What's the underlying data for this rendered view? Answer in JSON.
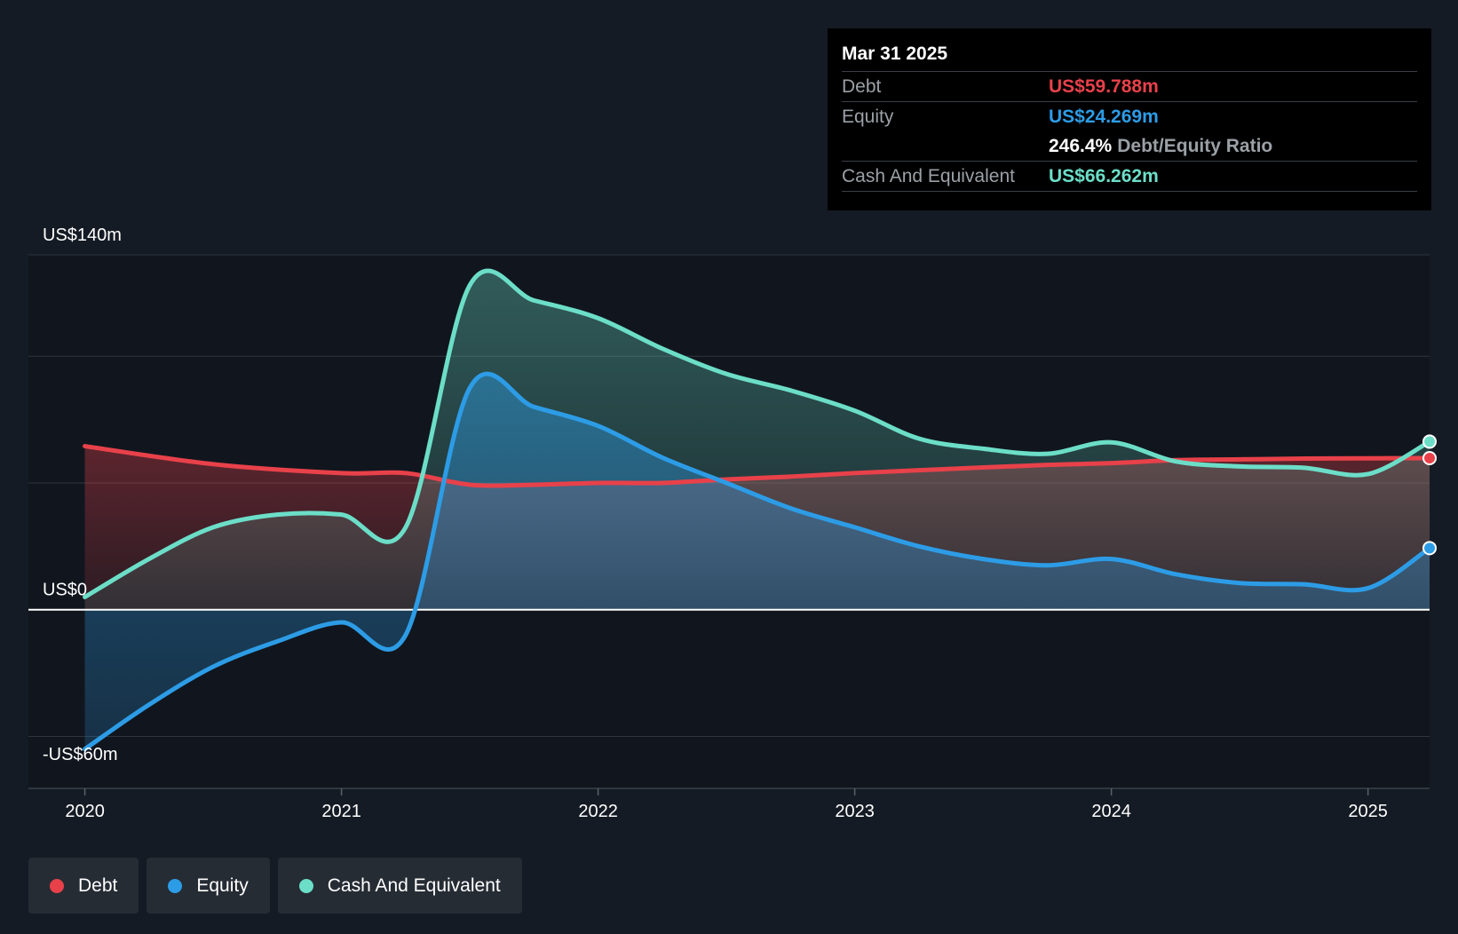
{
  "chart_data": {
    "type": "area",
    "y_axis": {
      "top_label": "US$140m",
      "zero_label": "US$0",
      "bottom_label": "-US$60m",
      "ylim": [
        -60,
        140
      ]
    },
    "x_ticks": [
      "2020",
      "2021",
      "2022",
      "2023",
      "2024",
      "2025"
    ],
    "xlim": [
      2019.78,
      2025.24
    ],
    "series": [
      {
        "name": "Debt",
        "color": "#e8414a",
        "points": [
          [
            2020.0,
            64.5
          ],
          [
            2020.5,
            57.4
          ],
          [
            2021.0,
            53.9
          ],
          [
            2021.25,
            53.9
          ],
          [
            2021.5,
            49.3
          ],
          [
            2021.75,
            49.3
          ],
          [
            2022.0,
            50.0
          ],
          [
            2022.25,
            50.0
          ],
          [
            2022.5,
            51.4
          ],
          [
            2022.75,
            52.5
          ],
          [
            2023.0,
            53.9
          ],
          [
            2023.25,
            55.0
          ],
          [
            2023.5,
            56.1
          ],
          [
            2023.75,
            57.1
          ],
          [
            2024.0,
            57.8
          ],
          [
            2024.25,
            59.0
          ],
          [
            2024.5,
            59.3
          ],
          [
            2024.75,
            59.6
          ],
          [
            2025.0,
            59.7
          ],
          [
            2025.24,
            59.8
          ]
        ]
      },
      {
        "name": "Equity",
        "color": "#2d9ce6",
        "points": [
          [
            2020.0,
            -55.0
          ],
          [
            2020.25,
            -37.5
          ],
          [
            2020.5,
            -22.5
          ],
          [
            2020.75,
            -12.5
          ],
          [
            2021.0,
            -5.0
          ],
          [
            2021.25,
            -10.0
          ],
          [
            2021.5,
            87.5
          ],
          [
            2021.75,
            80.0
          ],
          [
            2022.0,
            72.5
          ],
          [
            2022.25,
            60.0
          ],
          [
            2022.5,
            50.0
          ],
          [
            2022.75,
            40.0
          ],
          [
            2023.0,
            32.5
          ],
          [
            2023.25,
            25.0
          ],
          [
            2023.5,
            20.0
          ],
          [
            2023.75,
            17.5
          ],
          [
            2024.0,
            20.0
          ],
          [
            2024.25,
            14.0
          ],
          [
            2024.5,
            10.5
          ],
          [
            2024.75,
            10.0
          ],
          [
            2025.0,
            8.5
          ],
          [
            2025.24,
            24.3
          ]
        ]
      },
      {
        "name": "Cash And Equivalent",
        "color": "#6cdec8",
        "points": [
          [
            2020.0,
            5.0
          ],
          [
            2020.25,
            20.0
          ],
          [
            2020.5,
            32.5
          ],
          [
            2020.75,
            37.5
          ],
          [
            2021.0,
            37.5
          ],
          [
            2021.25,
            32.5
          ],
          [
            2021.5,
            128.0
          ],
          [
            2021.75,
            122.0
          ],
          [
            2022.0,
            115.0
          ],
          [
            2022.25,
            103.0
          ],
          [
            2022.5,
            93.0
          ],
          [
            2022.75,
            86.5
          ],
          [
            2023.0,
            78.5
          ],
          [
            2023.25,
            67.5
          ],
          [
            2023.5,
            63.5
          ],
          [
            2023.75,
            61.5
          ],
          [
            2024.0,
            66.0
          ],
          [
            2024.25,
            58.5
          ],
          [
            2024.5,
            56.5
          ],
          [
            2024.75,
            56.0
          ],
          [
            2025.0,
            53.5
          ],
          [
            2025.24,
            66.3
          ]
        ]
      }
    ]
  },
  "tooltip": {
    "date": "Mar 31 2025",
    "debt_label": "Debt",
    "debt_value": "US$59.788m",
    "equity_label": "Equity",
    "equity_value": "US$24.269m",
    "ratio_value": "246.4%",
    "ratio_label": "Debt/Equity Ratio",
    "cash_label": "Cash And Equivalent",
    "cash_value": "US$66.262m"
  },
  "legend": {
    "debt": "Debt",
    "equity": "Equity",
    "cash": "Cash And Equivalent"
  },
  "colors": {
    "debt": "#e8414a",
    "equity": "#2d9ce6",
    "cash": "#6cdec8"
  }
}
